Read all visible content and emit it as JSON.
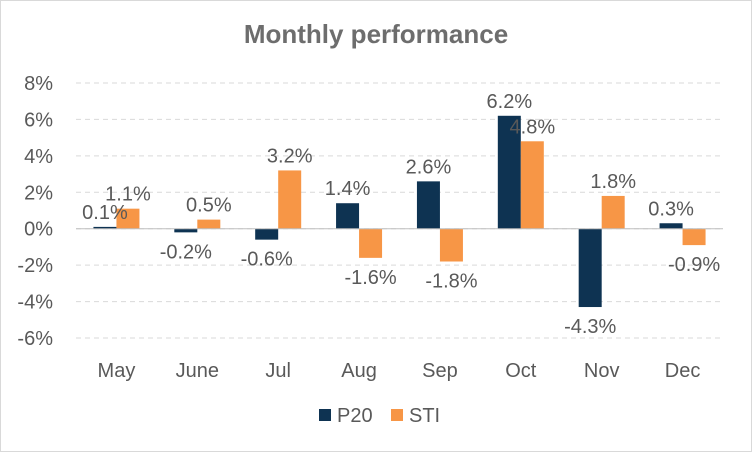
{
  "chart_data": {
    "type": "bar",
    "title": "Monthly performance",
    "categories": [
      "May",
      "June",
      "Jul",
      "Aug",
      "Sep",
      "Oct",
      "Nov",
      "Dec"
    ],
    "series": [
      {
        "name": "P20",
        "color": "#0e3352",
        "values": [
          0.1,
          -0.2,
          -0.6,
          1.4,
          2.6,
          6.2,
          -4.3,
          0.3
        ],
        "labels": [
          "0.1%",
          "-0.2%",
          "-0.6%",
          "1.4%",
          "2.6%",
          "6.2%",
          "-4.3%",
          "0.3%"
        ]
      },
      {
        "name": "STI",
        "color": "#f79646",
        "values": [
          1.1,
          0.5,
          3.2,
          -1.6,
          -1.8,
          4.8,
          1.8,
          -0.9
        ],
        "labels": [
          "1.1%",
          "0.5%",
          "3.2%",
          "-1.6%",
          "-1.8%",
          "4.8%",
          "1.8%",
          "-0.9%"
        ]
      }
    ],
    "yticks": [
      "8%",
      "6%",
      "4%",
      "2%",
      "0%",
      "-2%",
      "-4%",
      "-6%"
    ],
    "ylim": [
      -6,
      8
    ],
    "ylabel": "",
    "xlabel": "",
    "grid": true,
    "legend_position": "bottom"
  }
}
